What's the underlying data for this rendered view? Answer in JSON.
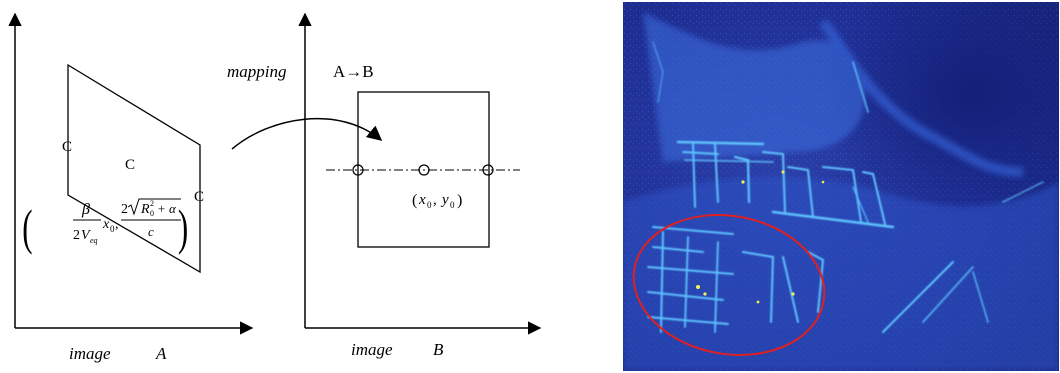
{
  "diagram": {
    "label_mapping": "mapping",
    "label_arrow": "A→B",
    "image_a": {
      "word": "image",
      "letter": "A"
    },
    "image_b": {
      "word": "image",
      "letter": "B"
    },
    "formula": {
      "beta": "β",
      "den_2": "2",
      "den_V": "V",
      "den_sub": "eq",
      "x": "x",
      "x_sub": "0",
      "comma": ",",
      "num_2": "2",
      "R": "R",
      "R_sub": "0",
      "R_sup": "2",
      "plus_alpha": "+ α",
      "c": "c",
      "open_paren": "(",
      "close_paren": ")"
    },
    "point_label": {
      "open": "(",
      "x": "x",
      "x_sub": "0",
      "comma": ",",
      "y": "y",
      "y_sub": "0",
      "close": ")"
    },
    "marker_glyph": "C"
  },
  "colors": {
    "line": "#000000",
    "heatmap_bg": "#1c2a8a",
    "heatmap_glow": "#3fa8ff",
    "highlight": "#f2f05a",
    "ellipse": "#e02020"
  }
}
